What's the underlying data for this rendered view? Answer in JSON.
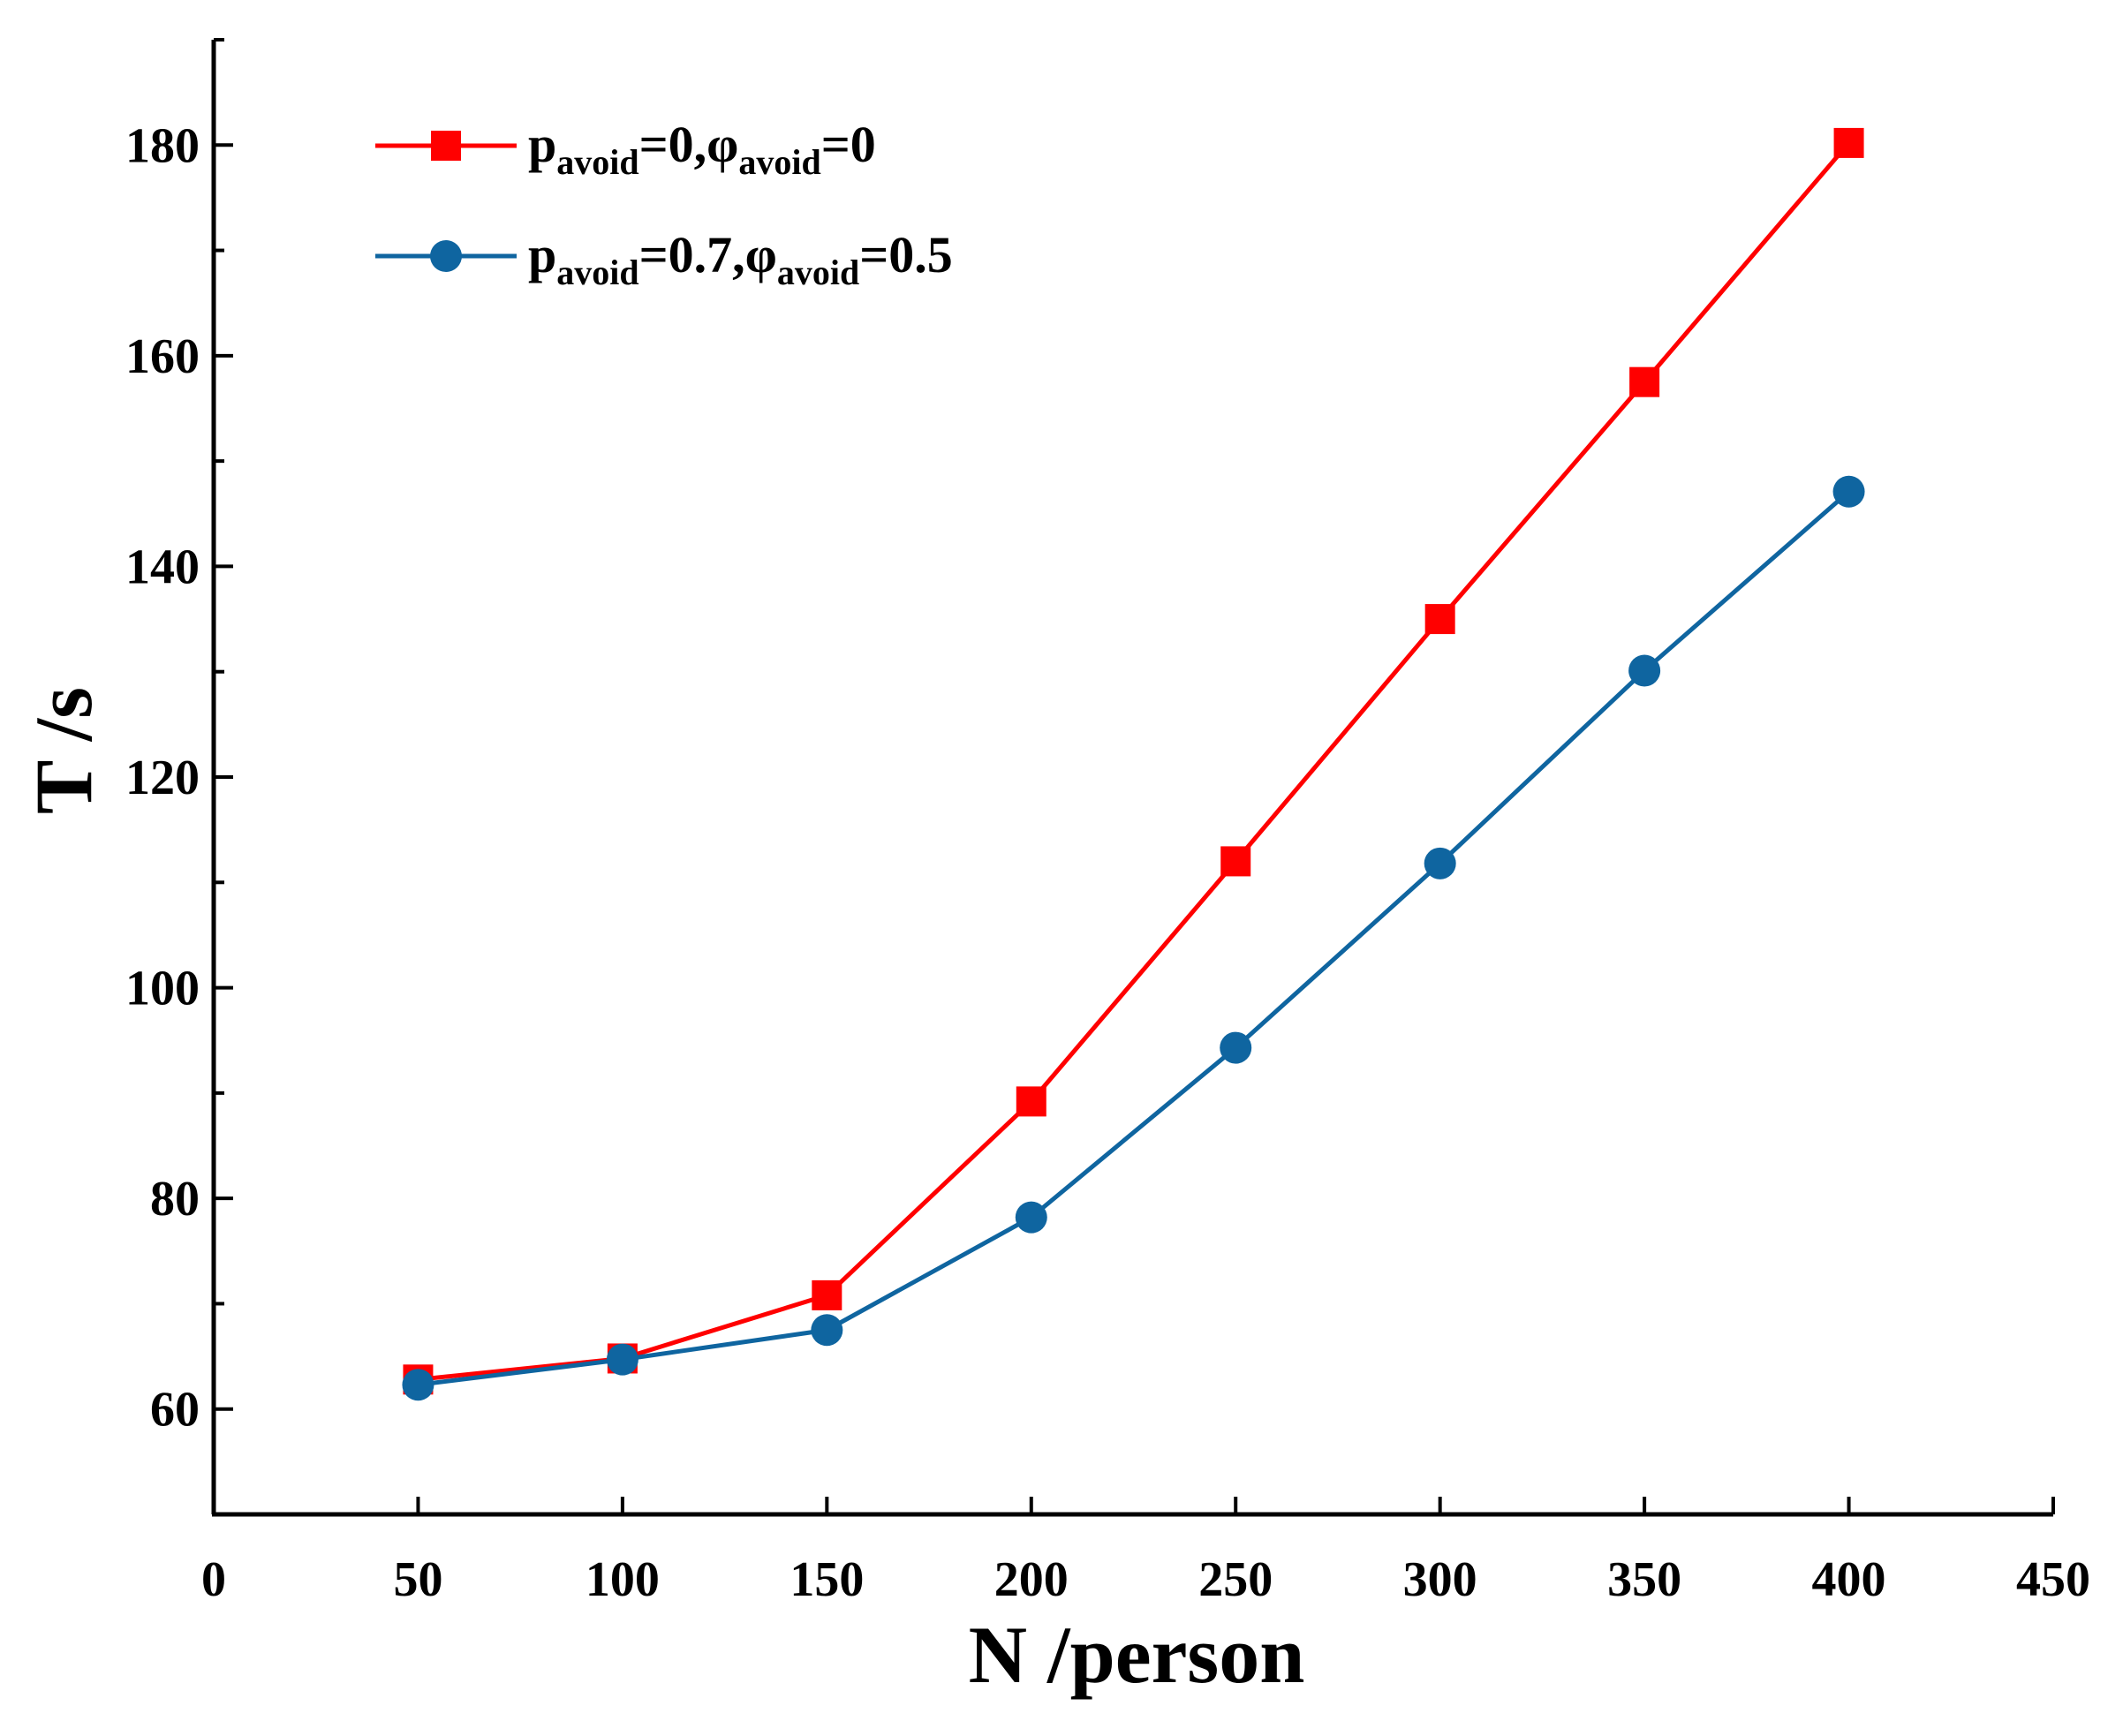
{
  "chart_data": {
    "type": "line",
    "title": "",
    "xlabel": "N /person",
    "ylabel": "T /s",
    "xlim": [
      0,
      450
    ],
    "ylim": [
      50,
      190
    ],
    "x_ticks": [
      0,
      50,
      100,
      150,
      200,
      250,
      300,
      350,
      400,
      450
    ],
    "x_tick_labels": [
      "0",
      "50",
      "100",
      "150",
      "200",
      "250",
      "300",
      "350",
      "400",
      "450"
    ],
    "y_ticks": [
      60,
      80,
      100,
      120,
      140,
      160,
      180
    ],
    "y_tick_labels": [
      "60",
      "80",
      "100",
      "120",
      "140",
      "160",
      "180"
    ],
    "y_minor_ticks": [
      50,
      70,
      90,
      110,
      130,
      150,
      170,
      190
    ],
    "grid": false,
    "legend_position": "top-left",
    "x": [
      50,
      100,
      150,
      200,
      250,
      300,
      350,
      400
    ],
    "series": [
      {
        "name": "p_avoid=0,φ_avoid=0",
        "legend": {
          "p": "p",
          "p_sub": "avoid",
          "mid": "=0,φ",
          "phi_sub": "avoid",
          "end": "=0"
        },
        "color": "#ff0000",
        "marker": "square",
        "values": [
          62.8,
          64.8,
          70.8,
          89.2,
          112.0,
          135.0,
          157.5,
          180.2
        ]
      },
      {
        "name": "p_avoid=0.7,φ_avoid=0.5",
        "legend": {
          "p": "p",
          "p_sub": "avoid",
          "mid": "=0.7,φ",
          "phi_sub": "avoid",
          "end": "=0.5"
        },
        "color": "#0f65a0",
        "marker": "circle",
        "values": [
          62.3,
          64.7,
          67.5,
          78.2,
          94.3,
          111.8,
          130.1,
          147.1
        ]
      }
    ]
  }
}
